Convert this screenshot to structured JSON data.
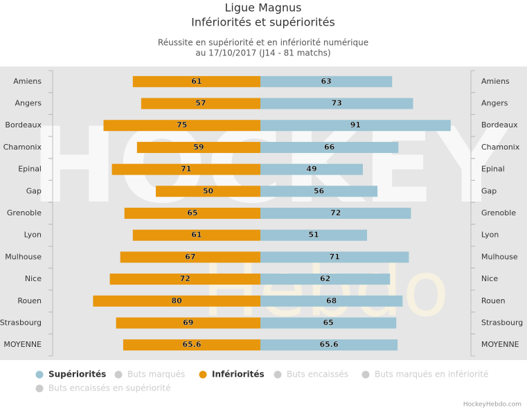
{
  "chart_data": {
    "type": "butterfly-bar",
    "title": [
      "Ligue Magnus",
      "Infériorités et supériorités"
    ],
    "subtitle": [
      "Réussite en supériorité et en infériorité numérique",
      "au 17/10/2017 (J14 - 81 matchs)"
    ],
    "categories": [
      "Amiens",
      "Angers",
      "Bordeaux",
      "Chamonix",
      "Epinal",
      "Gap",
      "Grenoble",
      "Lyon",
      "Mulhouse",
      "Nice",
      "Rouen",
      "Strasbourg",
      "MOYENNE"
    ],
    "xlim": [
      0,
      100
    ],
    "series": [
      {
        "name": "Supériorités",
        "color": "#9cc4d4",
        "side": "right",
        "visible": true,
        "values": [
          63,
          73,
          91,
          66,
          49,
          56,
          72,
          51,
          71,
          62,
          68,
          65,
          65.6
        ]
      },
      {
        "name": "Buts marqués",
        "color": "#cccccc",
        "visible": false
      },
      {
        "name": "Infériorités",
        "color": "#e8960c",
        "side": "left",
        "visible": true,
        "values": [
          61,
          57,
          75,
          59,
          71,
          50,
          65,
          61,
          67,
          72,
          80,
          69,
          65.6
        ]
      },
      {
        "name": "Buts encaissés",
        "color": "#cccccc",
        "visible": false
      },
      {
        "name": "Buts marqués en infériorité",
        "color": "#cccccc",
        "visible": false
      },
      {
        "name": "Buts encaissés en supériorité",
        "color": "#cccccc",
        "visible": false
      }
    ],
    "watermark": [
      "HOCKEY",
      "Hebdo"
    ],
    "credits": "HockeyHebdo.com"
  }
}
